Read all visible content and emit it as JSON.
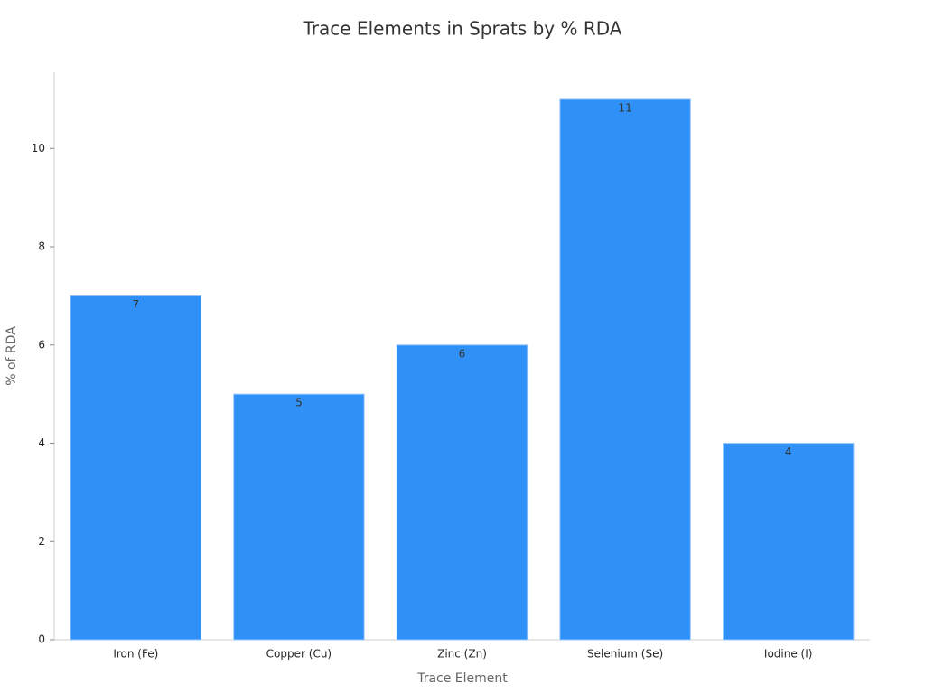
{
  "chart_data": {
    "type": "bar",
    "title": "Trace Elements in Sprats by % RDA",
    "x_label": "Trace Element",
    "y_label": "% of RDA",
    "categories": [
      "Iron (Fe)",
      "Copper (Cu)",
      "Zinc (Zn)",
      "Selenium (Se)",
      "Iodine (I)"
    ],
    "values": [
      7,
      5,
      6,
      11,
      4
    ],
    "color": "#2f91f8",
    "ylim": [
      0,
      11.55
    ],
    "yticks": [
      0,
      2,
      4,
      6,
      8,
      10
    ],
    "grid": false
  }
}
